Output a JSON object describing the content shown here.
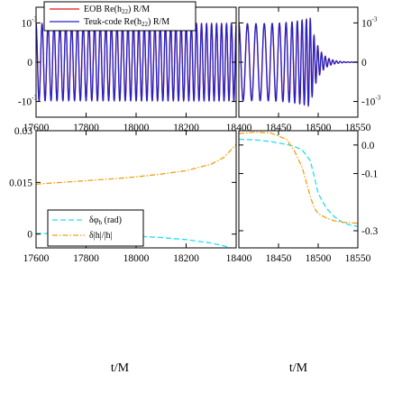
{
  "colors": {
    "eob": "#e8141b",
    "teuk": "#2323c8",
    "dphi": "#22e0f0",
    "damp": "#f0a010"
  },
  "chart_data": [
    {
      "type": "line",
      "panel": "top-left",
      "xlim": [
        17600,
        18400
      ],
      "ylim": [
        -0.0014,
        0.0014
      ],
      "x_ticks": [
        17600,
        17800,
        18000,
        18200
      ],
      "x_tick_labels": [
        "17600",
        "17800",
        "18000",
        "18200"
      ],
      "y_ticks": [
        -0.001,
        0,
        0.001
      ],
      "y_tick_labels": [
        "-10",
        "0",
        "10"
      ],
      "y_tick_exponents": [
        "-3",
        "",
        "-3"
      ],
      "series": [
        {
          "name": "EOB Re(h",
          "name_sub": "22",
          "name_tail": ") R/M",
          "color": "#e8141b",
          "amplitude": 0.00098,
          "cycles": 33
        },
        {
          "name": "Teuk-code Re(h",
          "name_sub": "22",
          "name_tail": ") R/M",
          "color": "#2323c8",
          "amplitude": 0.00098,
          "cycles": 33
        }
      ],
      "legend": "top-left"
    },
    {
      "type": "line",
      "panel": "top-right",
      "xlim": [
        18400,
        18550
      ],
      "ylim": [
        -0.0014,
        0.0014
      ],
      "x_ticks": [
        18400,
        18450,
        18500,
        18550
      ],
      "x_tick_labels": [
        "18400",
        "18450",
        "18500",
        "18550"
      ],
      "y_ticks": [
        -0.001,
        0,
        0.001
      ],
      "y_tick_labels": [
        "-10",
        "0",
        "10"
      ],
      "y_tick_exponents": [
        "-3",
        "",
        "-3"
      ],
      "y_axis_side": "right",
      "peak_time": 18490,
      "peak_amplitude": 0.00112,
      "series": [
        {
          "name": "EOB Re(h22) R/M",
          "color": "#e8141b"
        },
        {
          "name": "Teuk-code Re(h22) R/M",
          "color": "#2323c8"
        }
      ]
    },
    {
      "type": "line",
      "panel": "bottom-left",
      "xlim": [
        17600,
        18400
      ],
      "ylim": [
        -0.004,
        0.03
      ],
      "x_ticks": [
        17600,
        17800,
        18000,
        18200
      ],
      "x_tick_labels": [
        "17600",
        "17800",
        "18000",
        "18200"
      ],
      "y_ticks": [
        0,
        0.015,
        0.03
      ],
      "y_tick_labels": [
        "0",
        "0.015",
        "0.03"
      ],
      "xlabel": "t/M",
      "series": [
        {
          "name": "δφ",
          "name_sub": "h",
          "name_tail": " (rad)",
          "color": "#22e0f0",
          "dash": "dash",
          "x": [
            17600,
            17700,
            17800,
            17900,
            18000,
            18100,
            18200,
            18300,
            18350,
            18400
          ],
          "y": [
            0.0002,
            0.0001,
            -0.0001,
            -0.0003,
            -0.0006,
            -0.001,
            -0.0016,
            -0.0026,
            -0.0034,
            -0.0045
          ]
        },
        {
          "name": "δ|h|/|h|",
          "color": "#f0a010",
          "dash": "dashdot",
          "x": [
            17600,
            17700,
            17800,
            17900,
            18000,
            18100,
            18200,
            18300,
            18350,
            18400
          ],
          "y": [
            0.0145,
            0.015,
            0.0155,
            0.016,
            0.0166,
            0.0174,
            0.0184,
            0.0203,
            0.0222,
            0.026
          ]
        }
      ],
      "legend": "center-left"
    },
    {
      "type": "line",
      "panel": "bottom-right",
      "xlim": [
        18400,
        18550
      ],
      "ylim": [
        -0.36,
        0.05
      ],
      "x_ticks": [
        18400,
        18450,
        18500,
        18550
      ],
      "x_tick_labels": [
        "18400",
        "18450",
        "18500",
        "18550"
      ],
      "y_ticks": [
        0,
        -0.1,
        -0.3
      ],
      "y_tick_labels": [
        "0.0",
        "-0.1",
        "-0.3"
      ],
      "y_axis_side": "right",
      "xlabel": "t/M",
      "series": [
        {
          "name": "δφh (rad)",
          "color": "#22e0f0",
          "dash": "dash",
          "x": [
            18400,
            18420,
            18440,
            18460,
            18470,
            18480,
            18490,
            18495,
            18500,
            18510,
            18520,
            18530,
            18540,
            18550
          ],
          "y": [
            0.02,
            0.018,
            0.012,
            0.002,
            -0.005,
            -0.018,
            -0.055,
            -0.11,
            -0.17,
            -0.22,
            -0.25,
            -0.27,
            -0.28,
            -0.285
          ]
        },
        {
          "name": "δ|h|/|h|",
          "color": "#f0a010",
          "dash": "dashdot",
          "x": [
            18400,
            18420,
            18440,
            18460,
            18470,
            18480,
            18485,
            18490,
            18495,
            18500,
            18510,
            18520,
            18530,
            18540,
            18550
          ],
          "y": [
            0.04,
            0.045,
            0.042,
            0.02,
            -0.02,
            -0.08,
            -0.13,
            -0.18,
            -0.22,
            -0.24,
            -0.255,
            -0.265,
            -0.27,
            -0.272,
            -0.274
          ]
        }
      ]
    }
  ]
}
